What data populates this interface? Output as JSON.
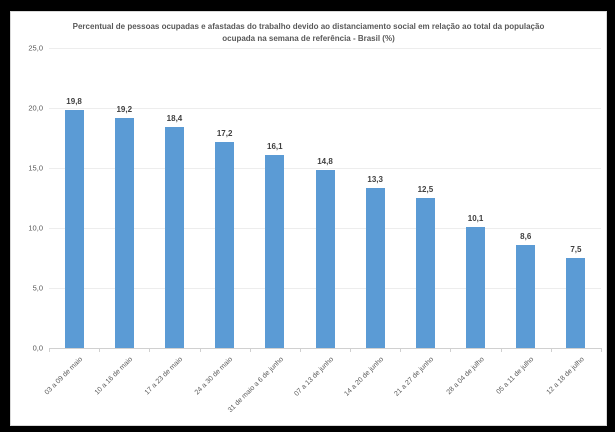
{
  "frame": {
    "background_color": "#000000",
    "panel_background_color": "#FFFFFF",
    "panel_border_color": "#D9D9D9"
  },
  "chart_data": {
    "type": "bar",
    "title": "Percentual de pessoas ocupadas e afastadas do trabalho devido ao distanciamento social em relação ao total da população ocupada na semana de referência - Brasil (%)",
    "categories": [
      "03 a 09 de maio",
      "10 a 16 de maio",
      "17 a 23 de maio",
      "24 a 30 de maio",
      "31 de maio a 6 de junho",
      "07 a 13 de junho",
      "14 a 20 de junho",
      "21 a 27 de junho",
      "28 a 04 de julho",
      "05 a 11 de julho",
      "12 a 18 de julho"
    ],
    "values": [
      19.8,
      19.2,
      18.4,
      17.2,
      16.1,
      14.8,
      13.3,
      12.5,
      10.1,
      8.6,
      7.5
    ],
    "value_labels": [
      "19,8",
      "19,2",
      "18,4",
      "17,2",
      "16,1",
      "14,8",
      "13,3",
      "12,5",
      "10,1",
      "8,6",
      "7,5"
    ],
    "xlabel": "",
    "ylabel": "",
    "ylim": [
      0,
      25
    ],
    "y_ticks": [
      0,
      5,
      10,
      15,
      20,
      25
    ],
    "y_tick_labels": [
      "0,0",
      "5,0",
      "10,0",
      "15,0",
      "20,0",
      "25,0"
    ],
    "decimal_separator": ",",
    "grid": true,
    "legend": false,
    "bar_color": "#5B9BD5",
    "gridline_color": "#EDEDED",
    "axis_color": "#D0D0D0",
    "text_color": "#595959",
    "value_label_color": "#404040"
  }
}
